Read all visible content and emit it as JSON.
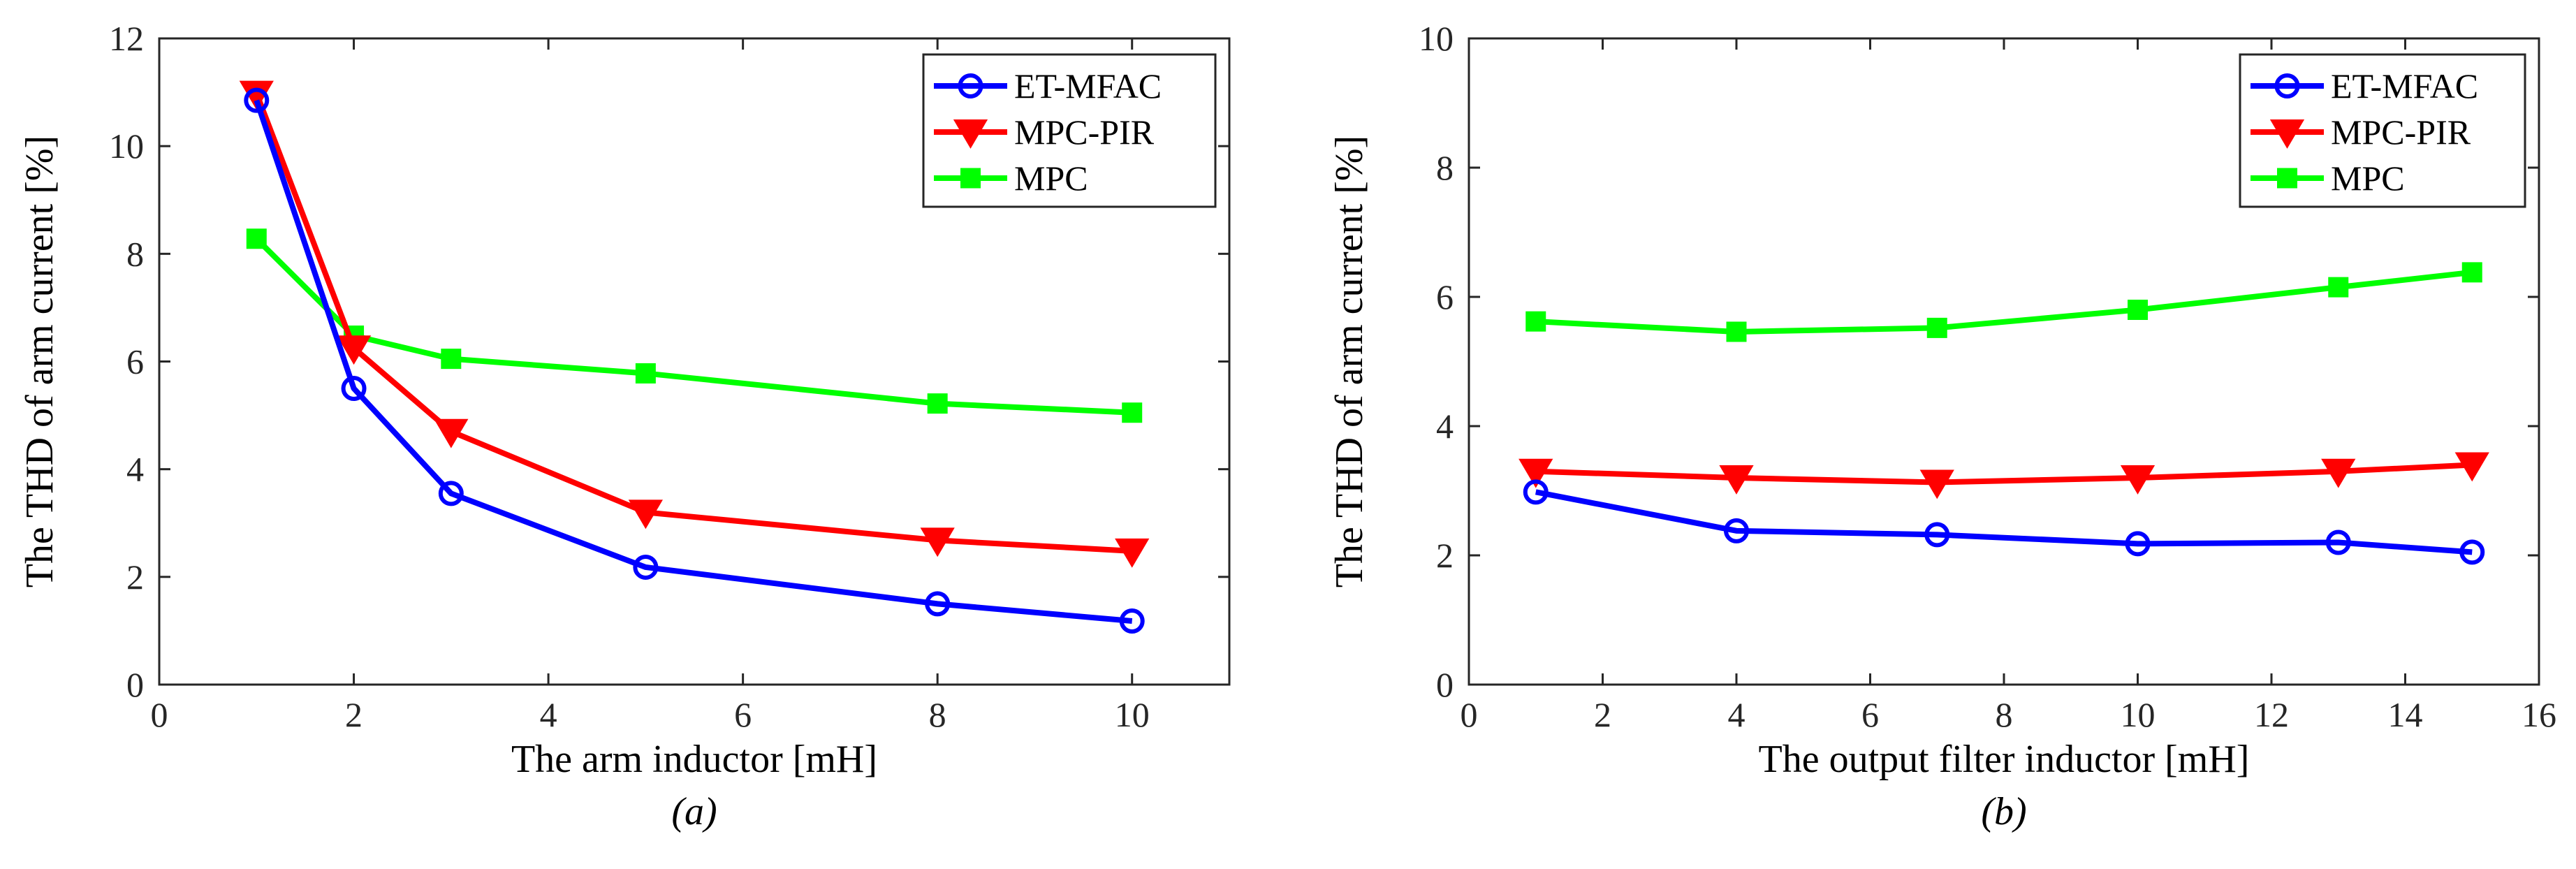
{
  "chart_data": [
    {
      "type": "line",
      "panel": "a",
      "caption": "(a)",
      "xlabel": "The arm inductor [mH]",
      "ylabel": "The THD of arm current [%]",
      "xlim": [
        0,
        11
      ],
      "ylim": [
        0,
        12
      ],
      "xticks": [
        0,
        2,
        4,
        6,
        8,
        10
      ],
      "yticks": [
        0,
        2,
        4,
        6,
        8,
        10,
        12
      ],
      "legend_position": "top-right",
      "x": [
        1,
        2,
        3,
        5,
        8,
        10
      ],
      "series": [
        {
          "name": "ET-MFAC",
          "color": "#0000ff",
          "marker": "circle",
          "values": [
            10.85,
            5.5,
            3.55,
            2.18,
            1.5,
            1.18
          ]
        },
        {
          "name": "MPC-PIR",
          "color": "#ff0000",
          "marker": "triangle-down",
          "values": [
            10.98,
            6.25,
            4.7,
            3.2,
            2.68,
            2.48
          ]
        },
        {
          "name": "MPC",
          "color": "#00ff00",
          "marker": "square",
          "values": [
            8.28,
            6.48,
            6.05,
            5.78,
            5.22,
            5.05
          ]
        }
      ]
    },
    {
      "type": "line",
      "panel": "b",
      "caption": "(b)",
      "xlabel": "The output filter inductor [mH]",
      "ylabel": "The THD of arm current [%]",
      "xlim": [
        0,
        16
      ],
      "ylim": [
        0,
        10
      ],
      "xticks": [
        0,
        2,
        4,
        6,
        8,
        10,
        12,
        14,
        16
      ],
      "yticks": [
        0,
        2,
        4,
        6,
        8,
        10
      ],
      "legend_position": "top-right",
      "x": [
        1,
        4,
        7,
        10,
        13,
        15
      ],
      "series": [
        {
          "name": "ET-MFAC",
          "color": "#0000ff",
          "marker": "circle",
          "values": [
            2.98,
            2.38,
            2.32,
            2.18,
            2.2,
            2.05
          ]
        },
        {
          "name": "MPC-PIR",
          "color": "#ff0000",
          "marker": "triangle-down",
          "values": [
            3.3,
            3.2,
            3.13,
            3.2,
            3.3,
            3.4
          ]
        },
        {
          "name": "MPC",
          "color": "#00ff00",
          "marker": "square",
          "values": [
            5.62,
            5.46,
            5.52,
            5.8,
            6.15,
            6.38
          ]
        }
      ]
    }
  ]
}
